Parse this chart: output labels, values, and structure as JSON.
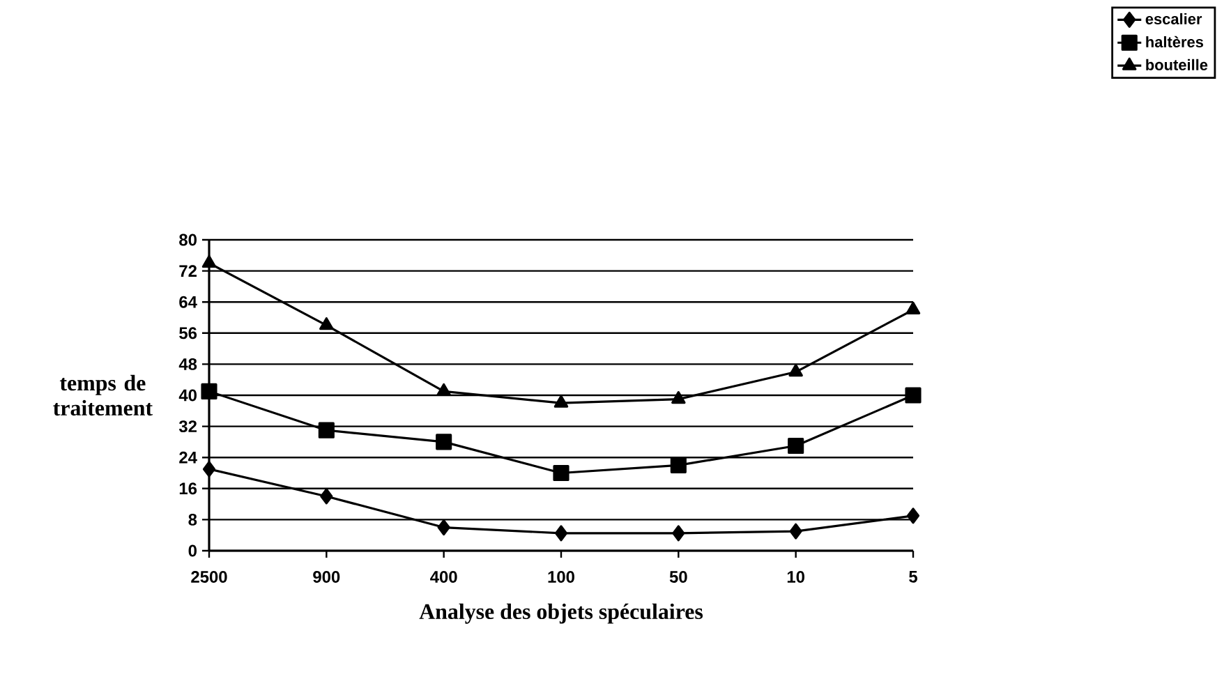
{
  "chart_data": {
    "type": "line",
    "xlabel": "Analyse des objets spéculaires",
    "ylabel": "temps de traitement",
    "categories": [
      "2500",
      "900",
      "400",
      "100",
      "50",
      "10",
      "5"
    ],
    "series": [
      {
        "name": "escalier",
        "color": "#000000",
        "marker": "diamond",
        "values": [
          21,
          14,
          6,
          4.5,
          4.5,
          5,
          9
        ]
      },
      {
        "name": "haltères",
        "color": "#000000",
        "marker": "square",
        "values": [
          41,
          31,
          28,
          20,
          22,
          27,
          40
        ]
      },
      {
        "name": "bouteille",
        "color": "#000000",
        "marker": "triangle",
        "values": [
          74,
          58,
          41,
          38,
          39,
          46,
          62
        ]
      }
    ],
    "ylim": [
      0,
      80
    ],
    "yticks": [
      0,
      8,
      16,
      24,
      32,
      40,
      48,
      56,
      64,
      72,
      80
    ],
    "grid": "y",
    "legend": "top right",
    "line_style": "solid"
  }
}
